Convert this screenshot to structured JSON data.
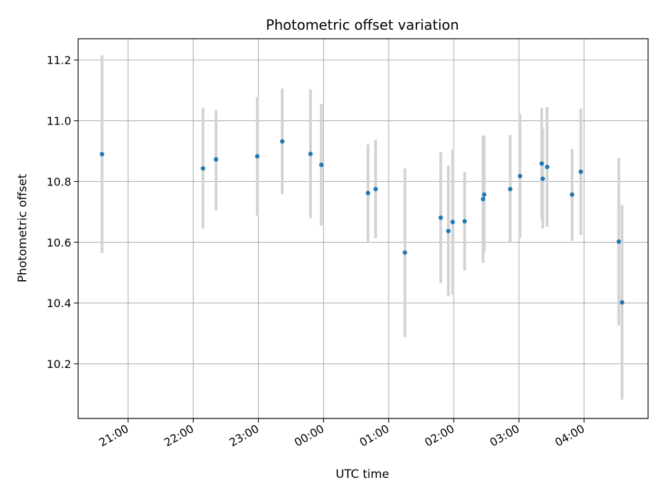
{
  "chart_data": {
    "type": "scatter",
    "title": "Photometric offset variation",
    "xlabel": "UTC time",
    "ylabel": "Photometric offset",
    "x_ticks": [
      "21:00",
      "22:00",
      "23:00",
      "00:00",
      "01:00",
      "02:00",
      "03:00",
      "04:00"
    ],
    "y_ticks": [
      "10.2",
      "10.4",
      "10.6",
      "10.8",
      "11.0",
      "11.2"
    ],
    "xlim": [
      "20:14",
      "04:59"
    ],
    "ylim": [
      10.02,
      11.27
    ],
    "grid": true,
    "colors": {
      "point": "#1f77b4",
      "errorbar": "#d3d3d3",
      "grid": "#b0b0b0"
    },
    "series": [
      {
        "points": [
          {
            "time": "20:36",
            "value": 10.89,
            "err_low": 10.565,
            "err_high": 11.215
          },
          {
            "time": "22:09",
            "value": 10.843,
            "err_low": 10.645,
            "err_high": 11.043
          },
          {
            "time": "22:21",
            "value": 10.873,
            "err_low": 10.705,
            "err_high": 11.035
          },
          {
            "time": "22:59",
            "value": 10.883,
            "err_low": 10.688,
            "err_high": 11.078
          },
          {
            "time": "23:22",
            "value": 10.932,
            "err_low": 10.758,
            "err_high": 11.106
          },
          {
            "time": "23:48",
            "value": 10.891,
            "err_low": 10.679,
            "err_high": 11.103
          },
          {
            "time": "23:58",
            "value": 10.855,
            "err_low": 10.655,
            "err_high": 11.055
          },
          {
            "time": "00:41",
            "value": 10.762,
            "err_low": 10.602,
            "err_high": 10.922
          },
          {
            "time": "00:48",
            "value": 10.775,
            "err_low": 10.613,
            "err_high": 10.937
          },
          {
            "time": "01:15",
            "value": 10.566,
            "err_low": 10.288,
            "err_high": 10.843
          },
          {
            "time": "01:48",
            "value": 10.681,
            "err_low": 10.465,
            "err_high": 10.897
          },
          {
            "time": "01:55",
            "value": 10.637,
            "err_low": 10.422,
            "err_high": 10.852
          },
          {
            "time": "01:59",
            "value": 10.667,
            "err_low": 10.428,
            "err_high": 10.906
          },
          {
            "time": "02:10",
            "value": 10.669,
            "err_low": 10.507,
            "err_high": 10.831
          },
          {
            "time": "02:27",
            "value": 10.742,
            "err_low": 10.532,
            "err_high": 10.952
          },
          {
            "time": "02:28",
            "value": 10.757,
            "err_low": 10.565,
            "err_high": 10.949
          },
          {
            "time": "02:52",
            "value": 10.775,
            "err_low": 10.601,
            "err_high": 10.953
          },
          {
            "time": "03:01",
            "value": 10.818,
            "err_low": 10.613,
            "err_high": 11.023
          },
          {
            "time": "03:21",
            "value": 10.859,
            "err_low": 10.677,
            "err_high": 11.043
          },
          {
            "time": "03:22",
            "value": 10.809,
            "err_low": 10.645,
            "err_high": 10.973
          },
          {
            "time": "03:26",
            "value": 10.848,
            "err_low": 10.651,
            "err_high": 11.045
          },
          {
            "time": "03:49",
            "value": 10.757,
            "err_low": 10.605,
            "err_high": 10.907
          },
          {
            "time": "03:57",
            "value": 10.832,
            "err_low": 10.624,
            "err_high": 11.04
          },
          {
            "time": "04:32",
            "value": 10.602,
            "err_low": 10.326,
            "err_high": 10.878
          },
          {
            "time": "04:35",
            "value": 10.402,
            "err_low": 10.082,
            "err_high": 10.722
          }
        ]
      }
    ]
  }
}
